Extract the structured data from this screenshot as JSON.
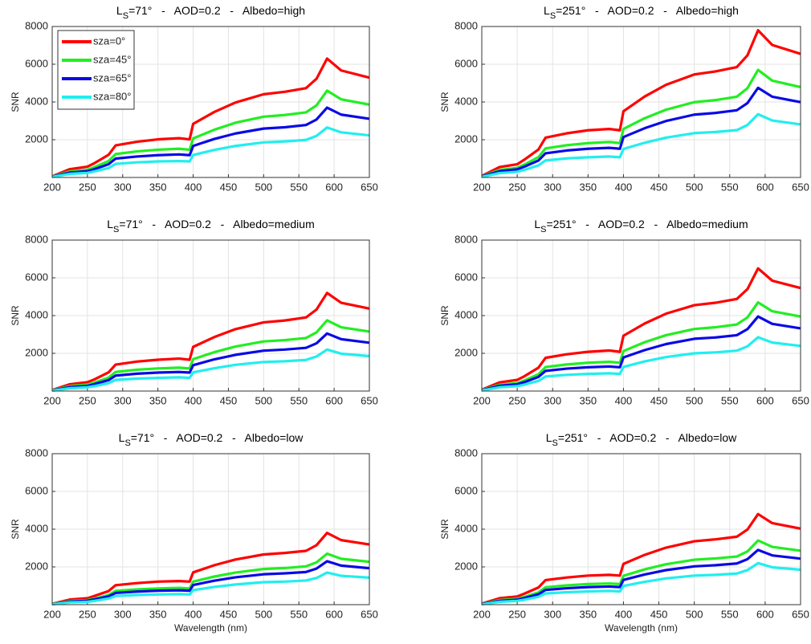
{
  "chart_data": [
    {
      "type": "line",
      "title": {
        "base": "L",
        "subscript": "S",
        "text": "=71°   -   AOD=0.2   -   Albedo=high"
      },
      "ylabel": "SNR",
      "legend": "upper left",
      "x": [
        200,
        225,
        250,
        260,
        280,
        290,
        320,
        350,
        380,
        395,
        400,
        430,
        460,
        500,
        530,
        560,
        575,
        590,
        610,
        650
      ],
      "xlim": [
        200,
        650
      ],
      "xticks": [
        200,
        250,
        300,
        350,
        400,
        450,
        500,
        550,
        600,
        650
      ],
      "ylim": [
        0,
        8000
      ],
      "yticks": [
        2000,
        4000,
        6000,
        8000
      ],
      "grid": true,
      "series": [
        {
          "name": "sza=0°",
          "color": "#ff0000",
          "values": [
            60,
            440,
            570,
            760,
            1200,
            1700,
            1890,
            2020,
            2080,
            2020,
            2840,
            3470,
            3970,
            4410,
            4540,
            4730,
            5230,
            6300,
            5670,
            5290
          ]
        },
        {
          "name": "sza=45°",
          "color": "#22ee22",
          "values": [
            50,
            320,
            410,
            550,
            870,
            1240,
            1380,
            1470,
            1520,
            1470,
            2070,
            2530,
            2900,
            3220,
            3310,
            3450,
            3820,
            4600,
            4140,
            3860
          ]
        },
        {
          "name": "sza=65°",
          "color": "#0a0ae6",
          "values": [
            40,
            260,
            330,
            440,
            700,
            1000,
            1110,
            1180,
            1220,
            1180,
            1670,
            2040,
            2330,
            2590,
            2660,
            2780,
            3070,
            3700,
            3330,
            3110
          ]
        },
        {
          "name": "sza=80°",
          "color": "#22eeee",
          "values": [
            30,
            190,
            240,
            320,
            500,
            720,
            800,
            850,
            870,
            850,
            1190,
            1460,
            1670,
            1860,
            1910,
            1990,
            2200,
            2650,
            2390,
            2230
          ]
        }
      ]
    },
    {
      "type": "line",
      "title": {
        "base": "L",
        "subscript": "S",
        "text": "=251°   -   AOD=0.2   -   Albedo=high"
      },
      "ylabel": "SNR",
      "x": [
        200,
        225,
        250,
        260,
        280,
        290,
        320,
        350,
        380,
        395,
        400,
        430,
        460,
        500,
        530,
        560,
        575,
        590,
        610,
        650
      ],
      "xlim": [
        200,
        650
      ],
      "xticks": [
        200,
        250,
        300,
        350,
        400,
        450,
        500,
        550,
        600,
        650
      ],
      "ylim": [
        0,
        8000
      ],
      "yticks": [
        2000,
        4000,
        6000,
        8000
      ],
      "grid": true,
      "series": [
        {
          "color": "#ff0000",
          "values": [
            80,
            550,
            700,
            940,
            1480,
            2110,
            2340,
            2500,
            2570,
            2500,
            3510,
            4290,
            4910,
            5460,
            5620,
            5850,
            6470,
            7800,
            7020,
            6550
          ]
        },
        {
          "color": "#22ee22",
          "values": [
            60,
            400,
            510,
            680,
            1080,
            1540,
            1710,
            1820,
            1880,
            1820,
            2570,
            3140,
            3590,
            3990,
            4100,
            4280,
            4730,
            5700,
            5130,
            4790
          ]
        },
        {
          "color": "#0a0ae6",
          "values": [
            50,
            330,
            430,
            570,
            900,
            1280,
            1430,
            1520,
            1570,
            1520,
            2140,
            2610,
            2990,
            3330,
            3420,
            3560,
            3940,
            4750,
            4280,
            3990
          ]
        },
        {
          "color": "#22eeee",
          "values": [
            30,
            230,
            300,
            400,
            640,
            900,
            1010,
            1070,
            1110,
            1070,
            1510,
            1840,
            2110,
            2350,
            2410,
            2510,
            2780,
            3350,
            3020,
            2810
          ]
        }
      ]
    },
    {
      "type": "line",
      "title": {
        "base": "L",
        "subscript": "S",
        "text": "=71°   -   AOD=0.2   -   Albedo=medium"
      },
      "ylabel": "SNR",
      "x": [
        200,
        225,
        250,
        260,
        280,
        290,
        320,
        350,
        380,
        395,
        400,
        430,
        460,
        500,
        530,
        560,
        575,
        590,
        610,
        650
      ],
      "xlim": [
        200,
        650
      ],
      "xticks": [
        200,
        250,
        300,
        350,
        400,
        450,
        500,
        550,
        600,
        650
      ],
      "ylim": [
        0,
        8000
      ],
      "yticks": [
        2000,
        4000,
        6000,
        8000
      ],
      "grid": true,
      "series": [
        {
          "color": "#ff0000",
          "values": [
            50,
            360,
            470,
            620,
            990,
            1400,
            1560,
            1660,
            1720,
            1660,
            2340,
            2860,
            3280,
            3640,
            3740,
            3900,
            4320,
            5200,
            4680,
            4370
          ]
        },
        {
          "color": "#22ee22",
          "values": [
            40,
            260,
            340,
            450,
            710,
            1010,
            1130,
            1200,
            1240,
            1200,
            1690,
            2060,
            2360,
            2630,
            2700,
            2810,
            3110,
            3750,
            3380,
            3150
          ]
        },
        {
          "color": "#0a0ae6",
          "values": [
            30,
            210,
            270,
            370,
            580,
            820,
            920,
            980,
            1010,
            980,
            1370,
            1680,
            1920,
            2140,
            2200,
            2290,
            2530,
            3050,
            2750,
            2560
          ]
        },
        {
          "color": "#22eeee",
          "values": [
            20,
            150,
            200,
            260,
            420,
            590,
            660,
            700,
            730,
            700,
            990,
            1210,
            1390,
            1540,
            1580,
            1650,
            1830,
            2200,
            1980,
            1850
          ]
        }
      ]
    },
    {
      "type": "line",
      "title": {
        "base": "L",
        "subscript": "S",
        "text": "=251°   -   AOD=0.2   -   Albedo=medium"
      },
      "ylabel": "SNR",
      "x": [
        200,
        225,
        250,
        260,
        280,
        290,
        320,
        350,
        380,
        395,
        400,
        430,
        460,
        500,
        530,
        560,
        575,
        590,
        610,
        650
      ],
      "xlim": [
        200,
        650
      ],
      "xticks": [
        200,
        250,
        300,
        350,
        400,
        450,
        500,
        550,
        600,
        650
      ],
      "ylim": [
        0,
        8000
      ],
      "yticks": [
        2000,
        4000,
        6000,
        8000
      ],
      "grid": true,
      "series": [
        {
          "color": "#ff0000",
          "values": [
            70,
            460,
            590,
            780,
            1240,
            1760,
            1950,
            2080,
            2150,
            2080,
            2930,
            3580,
            4100,
            4550,
            4680,
            4880,
            5400,
            6500,
            5850,
            5460
          ]
        },
        {
          "color": "#22ee22",
          "values": [
            50,
            330,
            420,
            560,
            890,
            1270,
            1410,
            1500,
            1550,
            1500,
            2120,
            2590,
            2960,
            3290,
            3380,
            3530,
            3900,
            4700,
            4230,
            3950
          ]
        },
        {
          "color": "#0a0ae6",
          "values": [
            40,
            280,
            360,
            470,
            750,
            1070,
            1190,
            1260,
            1300,
            1260,
            1780,
            2170,
            2490,
            2770,
            2840,
            2960,
            3280,
            3950,
            3560,
            3320
          ]
        },
        {
          "color": "#22eeee",
          "values": [
            30,
            200,
            260,
            340,
            540,
            770,
            860,
            910,
            940,
            910,
            1280,
            1570,
            1800,
            2000,
            2050,
            2140,
            2370,
            2850,
            2570,
            2390
          ]
        }
      ]
    },
    {
      "type": "line",
      "title": {
        "base": "L",
        "subscript": "S",
        "text": "=71°   -   AOD=0.2   -   Albedo=low"
      },
      "ylabel": "SNR",
      "xlabel": "Wavelength (nm)",
      "x": [
        200,
        225,
        250,
        260,
        280,
        290,
        320,
        350,
        380,
        395,
        400,
        430,
        460,
        500,
        530,
        560,
        575,
        590,
        610,
        650
      ],
      "xlim": [
        200,
        650
      ],
      "xticks": [
        200,
        250,
        300,
        350,
        400,
        450,
        500,
        550,
        600,
        650
      ],
      "ylim": [
        0,
        8000
      ],
      "yticks": [
        2000,
        4000,
        6000,
        8000
      ],
      "grid": true,
      "series": [
        {
          "color": "#ff0000",
          "values": [
            40,
            270,
            340,
            460,
            720,
            1030,
            1140,
            1220,
            1250,
            1220,
            1710,
            2090,
            2390,
            2660,
            2740,
            2850,
            3150,
            3800,
            3420,
            3190
          ]
        },
        {
          "color": "#22ee22",
          "values": [
            30,
            190,
            240,
            320,
            510,
            730,
            810,
            860,
            890,
            860,
            1220,
            1490,
            1700,
            1890,
            1940,
            2030,
            2240,
            2700,
            2430,
            2270
          ]
        },
        {
          "color": "#0a0ae6",
          "values": [
            20,
            160,
            210,
            280,
            440,
            620,
            690,
            740,
            760,
            740,
            1040,
            1270,
            1450,
            1610,
            1660,
            1730,
            1910,
            2300,
            2070,
            1930
          ]
        },
        {
          "color": "#22eeee",
          "values": [
            20,
            120,
            150,
            200,
            320,
            460,
            510,
            540,
            560,
            540,
            770,
            940,
            1070,
            1190,
            1220,
            1280,
            1410,
            1700,
            1530,
            1430
          ]
        }
      ]
    },
    {
      "type": "line",
      "title": {
        "base": "L",
        "subscript": "S",
        "text": "=251°   -   AOD=0.2   -   Albedo=low"
      },
      "ylabel": "SNR",
      "xlabel": "Wavelength (nm)",
      "x": [
        200,
        225,
        250,
        260,
        280,
        290,
        320,
        350,
        380,
        395,
        400,
        430,
        460,
        500,
        530,
        560,
        575,
        590,
        610,
        650
      ],
      "xlim": [
        200,
        650
      ],
      "xticks": [
        200,
        250,
        300,
        350,
        400,
        450,
        500,
        550,
        600,
        650
      ],
      "ylim": [
        0,
        8000
      ],
      "yticks": [
        2000,
        4000,
        6000,
        8000
      ],
      "grid": true,
      "series": [
        {
          "color": "#ff0000",
          "values": [
            50,
            340,
            430,
            580,
            910,
            1300,
            1440,
            1540,
            1580,
            1540,
            2160,
            2640,
            3020,
            3360,
            3460,
            3600,
            3980,
            4800,
            4320,
            4030
          ]
        },
        {
          "color": "#22ee22",
          "values": [
            30,
            240,
            310,
            410,
            650,
            920,
            1020,
            1090,
            1120,
            1090,
            1530,
            1870,
            2140,
            2380,
            2450,
            2550,
            2820,
            3400,
            3060,
            2860
          ]
        },
        {
          "color": "#0a0ae6",
          "values": [
            30,
            200,
            260,
            350,
            550,
            780,
            870,
            930,
            960,
            930,
            1310,
            1600,
            1830,
            2030,
            2090,
            2180,
            2410,
            2900,
            2610,
            2440
          ]
        },
        {
          "color": "#22eeee",
          "values": [
            20,
            150,
            200,
            260,
            420,
            590,
            660,
            700,
            730,
            700,
            990,
            1210,
            1390,
            1540,
            1580,
            1650,
            1830,
            2200,
            1980,
            1850
          ]
        }
      ]
    }
  ]
}
